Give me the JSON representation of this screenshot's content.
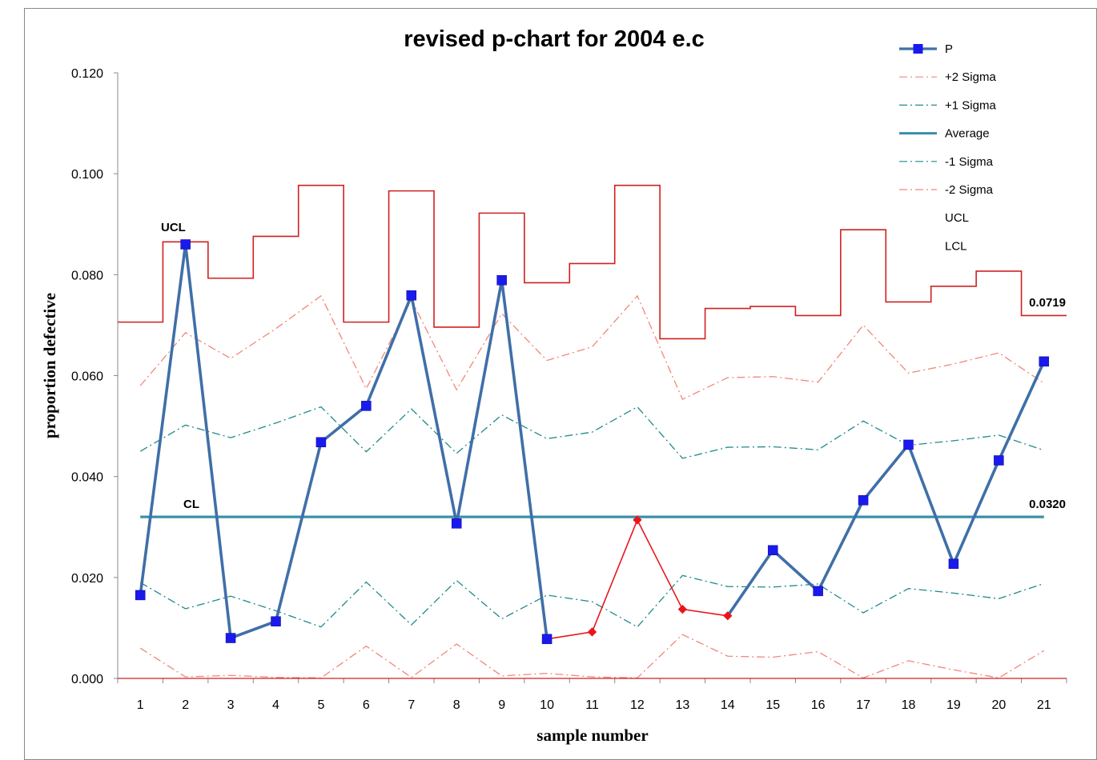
{
  "chart_data": {
    "type": "line",
    "title": "revised p-chart for 2004 e.c",
    "xlabel": "sample number",
    "ylabel": "proportion defective",
    "ylim": [
      0,
      0.12
    ],
    "ytick_values": [
      0,
      0.02,
      0.04,
      0.06,
      0.08,
      0.1,
      0.12
    ],
    "ytick_labels": [
      "0.000",
      "0.020",
      "0.040",
      "0.060",
      "0.080",
      "0.100",
      "0.120"
    ],
    "categories": [
      "1",
      "2",
      "3",
      "4",
      "5",
      "6",
      "7",
      "8",
      "9",
      "10",
      "11",
      "12",
      "13",
      "14",
      "15",
      "16",
      "17",
      "18",
      "19",
      "20",
      "21"
    ],
    "series": [
      {
        "key": "p",
        "name": "P",
        "color": "#3f6fa8",
        "marker": "#1a1aee",
        "values": [
          0.0165,
          0.086,
          0.008,
          0.0113,
          0.0468,
          0.054,
          0.0759,
          0.0307,
          0.0789,
          0.0078,
          0.0092,
          0.0314,
          0.0137,
          0.0124,
          0.0254,
          0.0173,
          0.0353,
          0.0463,
          0.0227,
          0.0432,
          0.0628
        ],
        "out_of_control_color": "#e8161c",
        "out_of_control_indices": [
          9,
          10,
          11,
          12,
          13
        ]
      },
      {
        "key": "plus2",
        "name": "+2 Sigma",
        "color": "#f08878",
        "values": [
          0.058,
          0.0685,
          0.0634,
          0.0693,
          0.0758,
          0.0574,
          0.075,
          0.0572,
          0.0723,
          0.063,
          0.0657,
          0.0758,
          0.0553,
          0.0596,
          0.0598,
          0.0587,
          0.07,
          0.0605,
          0.0623,
          0.0645,
          0.0585
        ]
      },
      {
        "key": "plus1",
        "name": "+1 Sigma",
        "color": "#208a8a",
        "values": [
          0.045,
          0.0502,
          0.0477,
          0.0506,
          0.0538,
          0.0449,
          0.0534,
          0.0446,
          0.0522,
          0.0475,
          0.0488,
          0.0538,
          0.0436,
          0.0458,
          0.0459,
          0.0453,
          0.051,
          0.0462,
          0.0471,
          0.0482,
          0.0452
        ]
      },
      {
        "key": "avg",
        "name": "Average",
        "color": "#3a8fa8",
        "values": [
          0.032,
          0.032,
          0.032,
          0.032,
          0.032,
          0.032,
          0.032,
          0.032,
          0.032,
          0.032,
          0.032,
          0.032,
          0.032,
          0.032,
          0.032,
          0.032,
          0.032,
          0.032,
          0.032,
          0.032,
          0.032
        ]
      },
      {
        "key": "minus1",
        "name": "-1 Sigma",
        "color": "#208a8a",
        "values": [
          0.019,
          0.0138,
          0.0163,
          0.0134,
          0.0102,
          0.0191,
          0.0106,
          0.0194,
          0.0118,
          0.0165,
          0.0152,
          0.0102,
          0.0204,
          0.0182,
          0.0181,
          0.0187,
          0.013,
          0.0178,
          0.0169,
          0.0158,
          0.0188
        ]
      },
      {
        "key": "minus2",
        "name": "-2 Sigma",
        "color": "#f08878",
        "values": [
          0.006,
          0.0003,
          0.0006,
          0.0002,
          0.0001,
          0.0064,
          0.0002,
          0.0068,
          0.0005,
          0.001,
          0.0003,
          0.0001,
          0.0087,
          0.0044,
          0.0042,
          0.0053,
          0.0001,
          0.0035,
          0.0017,
          0.0001,
          0.0055
        ]
      },
      {
        "key": "ucl",
        "name": "UCL",
        "color": "#d02020",
        "step": true,
        "values": [
          0.0706,
          0.0865,
          0.0793,
          0.0876,
          0.0977,
          0.0706,
          0.0966,
          0.0696,
          0.0922,
          0.0784,
          0.0822,
          0.0977,
          0.0673,
          0.0733,
          0.0737,
          0.0719,
          0.0889,
          0.0746,
          0.0777,
          0.0807,
          0.0719
        ]
      },
      {
        "key": "lcl",
        "name": "LCL",
        "color": "#d02020",
        "step": true,
        "values": [
          0,
          0,
          0,
          0,
          0,
          0,
          0,
          0,
          0,
          0,
          0,
          0,
          0,
          0,
          0,
          0,
          0,
          0,
          0,
          0,
          0
        ]
      }
    ],
    "legend": [
      "P",
      "+2 Sigma",
      "+1 Sigma",
      "Average",
      "-1 Sigma",
      "-2 Sigma",
      "UCL",
      "LCL"
    ],
    "legend_position": "top-right",
    "annotations": {
      "ucl_label": "UCL",
      "cl_label": "CL",
      "ucl_value": "0.0719",
      "cl_value": "0.0320"
    }
  }
}
